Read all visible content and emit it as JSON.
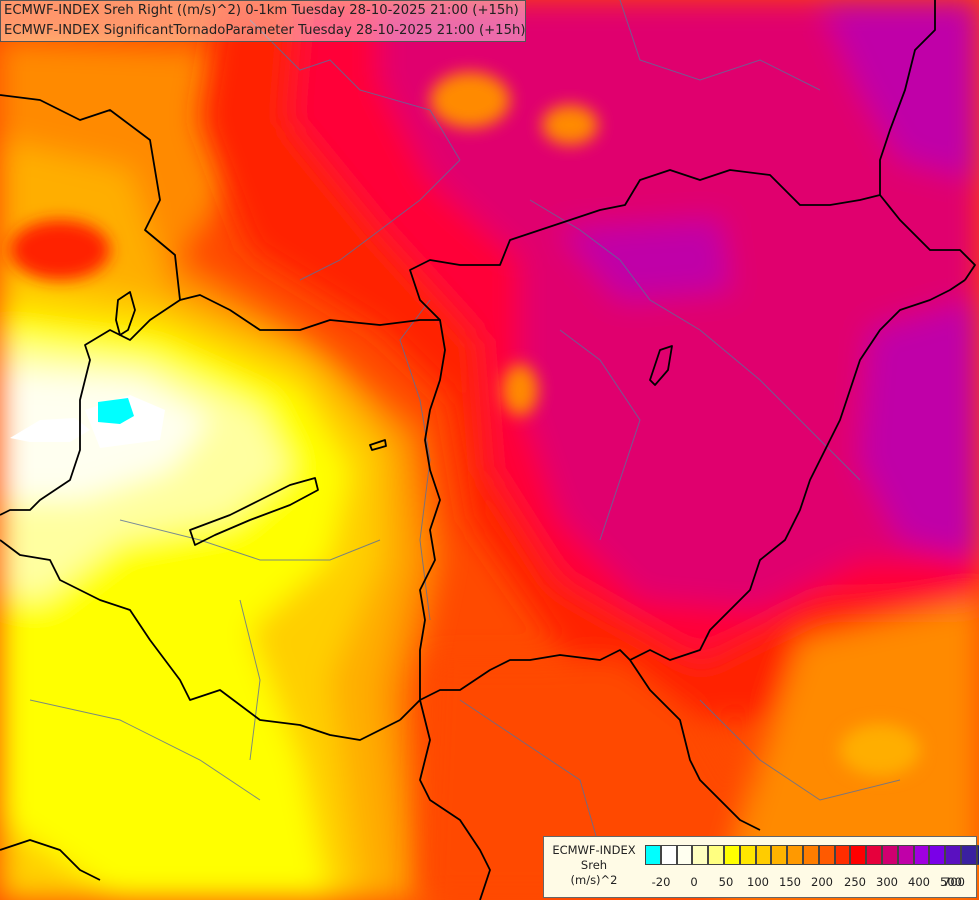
{
  "title_lines": [
    "ECMWF-INDEX Sreh Right ((m/s)^2) 0-1km Tuesday 28-10-2025 21:00 (+15h)",
    "ECMWF-INDEX SignificantTornadoParameter Tuesday 28-10-2025 21:00 (+15h)"
  ],
  "legend": {
    "name_lines": [
      "ECMWF-INDEX",
      "Sreh",
      "(m/s)^2"
    ],
    "colors": [
      "#00ffff",
      "#ffffff",
      "#fffff0",
      "#ffffc0",
      "#ffff80",
      "#ffff00",
      "#ffe600",
      "#ffcc00",
      "#ffb300",
      "#ff9900",
      "#ff7d00",
      "#ff5a00",
      "#ff2d00",
      "#ff0000",
      "#e6003c",
      "#d00070",
      "#c000a8",
      "#a000e0",
      "#7a00e8",
      "#5a10c0",
      "#3a20a0",
      "#1c1880"
    ],
    "tick_labels": [
      "-20",
      "0",
      "50",
      "100",
      "150",
      "200",
      "250",
      "300",
      "400",
      "500",
      "700"
    ]
  },
  "map_colors": {
    "deep_magenta": "#e0006e",
    "crimson": "#ff0038",
    "red": "#ff2400",
    "red_orange": "#ff4a00",
    "orange": "#ff8a00",
    "amber": "#ffae00",
    "gold": "#ffcf00",
    "yellow": "#ffff00",
    "pale_yellow": "#ffffa0",
    "cream": "#fffff0",
    "white": "#ffffff",
    "cyan": "#00ffff",
    "purple": "#c000a8"
  }
}
